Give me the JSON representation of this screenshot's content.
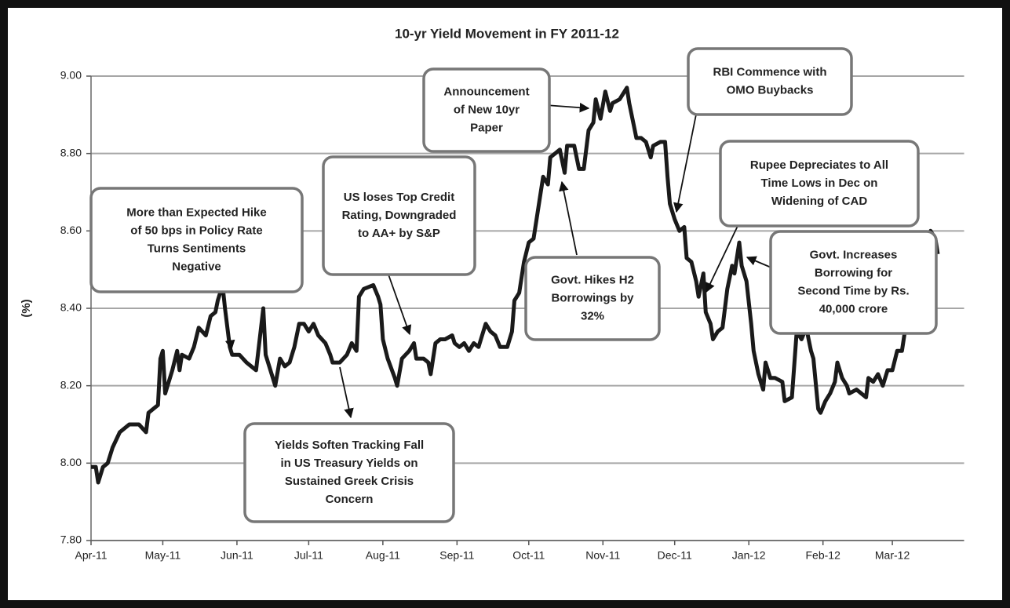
{
  "chart_data": {
    "type": "line",
    "title": "10-yr Yield Movement in FY 2011-12",
    "y_label": "(%)",
    "color": "#1a1a1a",
    "grid": true,
    "xlim": [
      0,
      365
    ],
    "xticks": [
      {
        "value": 0,
        "label": "Apr-11"
      },
      {
        "value": 30,
        "label": "May-11"
      },
      {
        "value": 61,
        "label": "Jun-11"
      },
      {
        "value": 91,
        "label": "Jul-11"
      },
      {
        "value": 122,
        "label": "Aug-11"
      },
      {
        "value": 153,
        "label": "Sep-11"
      },
      {
        "value": 183,
        "label": "Oct-11"
      },
      {
        "value": 214,
        "label": "Nov-11"
      },
      {
        "value": 244,
        "label": "Dec-11"
      },
      {
        "value": 275,
        "label": "Jan-12"
      },
      {
        "value": 306,
        "label": "Feb-12"
      },
      {
        "value": 335,
        "label": "Mar-12"
      }
    ],
    "ylim": [
      7.8,
      9.0
    ],
    "yticks": [
      {
        "value": 7.8,
        "label": "7.80"
      },
      {
        "value": 8.0,
        "label": "8.00"
      },
      {
        "value": 8.2,
        "label": "8.20"
      },
      {
        "value": 8.4,
        "label": "8.40"
      },
      {
        "value": 8.6,
        "label": "8.60"
      },
      {
        "value": 8.8,
        "label": "8.80"
      },
      {
        "value": 9.0,
        "label": "9.00"
      }
    ],
    "x": [
      0,
      2,
      3,
      5,
      7,
      9,
      12,
      14,
      16,
      20,
      23,
      24,
      28,
      29,
      30,
      31,
      34,
      36,
      37,
      38,
      41,
      43,
      45,
      48,
      50,
      52,
      53,
      55,
      56,
      58,
      59,
      62,
      65,
      67,
      69,
      72,
      73,
      75,
      77,
      79,
      81,
      83,
      85,
      87,
      89,
      91,
      93,
      95,
      98,
      100,
      101,
      104,
      107,
      109,
      111,
      112,
      114,
      118,
      120,
      121,
      122,
      124,
      127,
      128,
      130,
      133,
      135,
      136,
      139,
      141,
      142,
      144,
      146,
      148,
      151,
      152,
      154,
      156,
      158,
      160,
      162,
      165,
      167,
      169,
      171,
      174,
      176,
      177,
      179,
      181,
      183,
      185,
      187,
      189,
      191,
      192,
      194,
      196,
      198,
      199,
      202,
      204,
      206,
      208,
      210,
      211,
      213,
      215,
      217,
      218,
      221,
      224,
      225,
      227,
      228,
      230,
      232,
      234,
      235,
      238,
      240,
      241,
      242,
      244,
      246,
      248,
      249,
      251,
      253,
      254,
      256,
      257,
      259,
      260,
      262,
      264,
      266,
      268,
      269,
      271,
      272,
      274,
      276,
      277,
      279,
      281,
      282,
      284,
      286,
      289,
      290,
      293,
      295,
      297,
      299,
      301,
      302,
      304,
      305,
      307,
      309,
      311,
      312,
      314,
      316,
      317,
      320,
      322,
      324,
      325,
      327,
      329,
      331,
      333,
      335,
      337,
      339,
      340,
      342,
      343,
      345,
      347,
      349,
      351,
      353,
      354
    ],
    "values": [
      7.99,
      7.99,
      7.95,
      7.99,
      8.0,
      8.04,
      8.08,
      8.09,
      8.1,
      8.1,
      8.08,
      8.13,
      8.15,
      8.27,
      8.29,
      8.18,
      8.24,
      8.29,
      8.24,
      8.28,
      8.27,
      8.3,
      8.35,
      8.33,
      8.38,
      8.39,
      8.42,
      8.46,
      8.4,
      8.3,
      8.28,
      8.28,
      8.26,
      8.25,
      8.24,
      8.4,
      8.28,
      8.24,
      8.2,
      8.27,
      8.25,
      8.26,
      8.3,
      8.36,
      8.36,
      8.34,
      8.36,
      8.33,
      8.31,
      8.28,
      8.26,
      8.26,
      8.28,
      8.31,
      8.29,
      8.43,
      8.45,
      8.46,
      8.43,
      8.41,
      8.32,
      8.27,
      8.22,
      8.2,
      8.27,
      8.29,
      8.31,
      8.27,
      8.27,
      8.26,
      8.23,
      8.31,
      8.32,
      8.32,
      8.33,
      8.31,
      8.3,
      8.31,
      8.29,
      8.31,
      8.3,
      8.36,
      8.34,
      8.33,
      8.3,
      8.3,
      8.34,
      8.42,
      8.44,
      8.52,
      8.57,
      8.58,
      8.66,
      8.74,
      8.72,
      8.79,
      8.8,
      8.81,
      8.75,
      8.82,
      8.82,
      8.76,
      8.76,
      8.86,
      8.88,
      8.94,
      8.89,
      8.96,
      8.91,
      8.93,
      8.94,
      8.97,
      8.93,
      8.87,
      8.84,
      8.84,
      8.83,
      8.79,
      8.82,
      8.83,
      8.83,
      8.74,
      8.67,
      8.63,
      8.6,
      8.61,
      8.53,
      8.52,
      8.47,
      8.43,
      8.49,
      8.39,
      8.36,
      8.32,
      8.34,
      8.35,
      8.45,
      8.51,
      8.49,
      8.57,
      8.51,
      8.47,
      8.36,
      8.29,
      8.23,
      8.19,
      8.26,
      8.22,
      8.22,
      8.21,
      8.16,
      8.17,
      8.34,
      8.32,
      8.35,
      8.29,
      8.27,
      8.14,
      8.13,
      8.16,
      8.18,
      8.21,
      8.26,
      8.22,
      8.2,
      8.18,
      8.19,
      8.18,
      8.17,
      8.22,
      8.21,
      8.23,
      8.2,
      8.24,
      8.24,
      8.29,
      8.29,
      8.33,
      8.4,
      8.42,
      8.4,
      8.39,
      8.44,
      8.6,
      8.58,
      8.54
    ],
    "annotations": [
      {
        "lines": [
          "More than Expected Hike",
          "of 50 bps in Policy Rate",
          "Turns Sentiments",
          "Negative"
        ]
      },
      {
        "lines": [
          "Yields Soften Tracking Fall",
          "in US Treasury Yields on",
          "Sustained Greek Crisis",
          "Concern"
        ]
      },
      {
        "lines": [
          "US loses Top Credit",
          "Rating, Downgraded",
          "to AA+ by S&P"
        ]
      },
      {
        "lines": [
          "Announcement",
          "of New 10yr",
          "Paper"
        ]
      },
      {
        "lines": [
          "Govt. Hikes H2",
          "Borrowings by",
          "32%"
        ]
      },
      {
        "lines": [
          "RBI Commence with",
          "OMO Buybacks"
        ]
      },
      {
        "lines": [
          "Rupee Depreciates to All",
          "Time Lows in Dec on",
          "Widening of CAD"
        ]
      },
      {
        "lines": [
          "Govt. Increases",
          "Borrowing for",
          "Second Time by Rs.",
          "40,000 crore"
        ]
      }
    ]
  }
}
